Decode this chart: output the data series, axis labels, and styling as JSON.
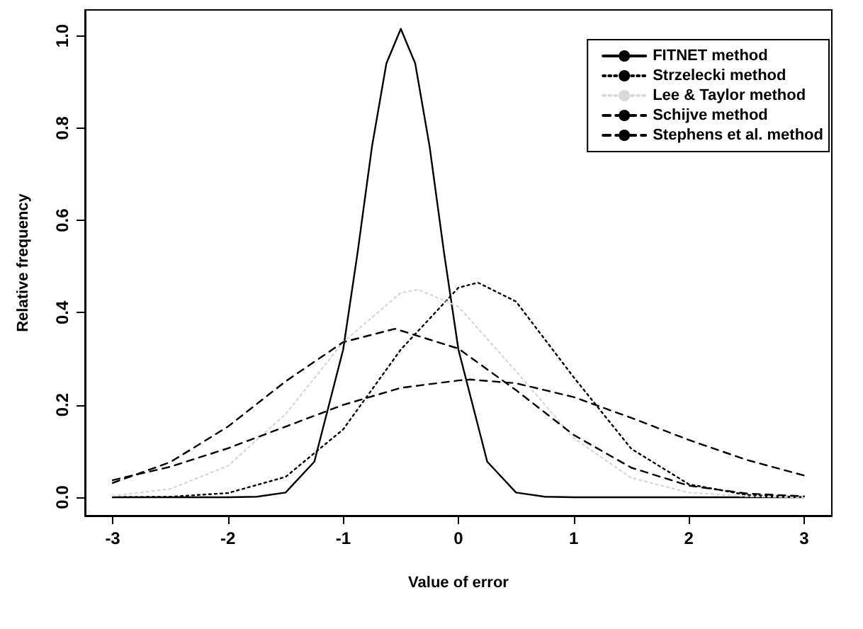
{
  "chart_data": {
    "type": "line",
    "xlabel": "Value of error",
    "ylabel": "Relative frequency",
    "xlim": [
      -3.24,
      3.24
    ],
    "xticks": [
      -3,
      -2,
      -1,
      0,
      1,
      2,
      3
    ],
    "ylim": [
      -0.04,
      1.056
    ],
    "yticks": [
      {
        "value": 0,
        "label": "0.0"
      },
      {
        "value": 0.2,
        "label": "0.2"
      },
      {
        "value": 0.4,
        "label": "0.4"
      },
      {
        "value": 0.6,
        "label": "0.6"
      },
      {
        "value": 0.8,
        "label": "0.8"
      },
      {
        "value": 1,
        "label": "1.0"
      }
    ],
    "grid": false,
    "legend": "top right",
    "series": [
      {
        "name": "FITNET method",
        "color": "#000000",
        "line_style": "solid",
        "x": [
          -3,
          -2.5,
          -2,
          -1.75,
          -1.5,
          -1.25,
          -1,
          -0.875,
          -0.75,
          -0.625,
          -0.5,
          -0.375,
          -0.25,
          -0.125,
          0,
          0.25,
          0.5,
          0.75,
          1,
          1.5,
          2,
          2.5,
          3
        ],
        "values": [
          0,
          0,
          0,
          0.001,
          0.01,
          0.077,
          0.32,
          0.53,
          0.76,
          0.94,
          1.015,
          0.94,
          0.76,
          0.53,
          0.32,
          0.077,
          0.01,
          0.001,
          0,
          0,
          0,
          0,
          0
        ]
      },
      {
        "name": "Strzelecki method",
        "color": "#000000",
        "line_style": "dotted",
        "x": [
          -3,
          -2.5,
          -2,
          -1.5,
          -1,
          -0.5,
          0,
          0.17,
          0.5,
          1,
          1.5,
          2,
          2.5,
          3
        ],
        "values": [
          0,
          0.001,
          0.009,
          0.044,
          0.147,
          0.32,
          0.454,
          0.465,
          0.424,
          0.26,
          0.105,
          0.028,
          0.005,
          0
        ]
      },
      {
        "name": "Lee & Taylor method",
        "color": "#d9d9d9",
        "line_style": "dotted",
        "x": [
          -3,
          -2.5,
          -2,
          -1.5,
          -1,
          -0.5,
          -0.35,
          0,
          0.5,
          1,
          1.5,
          2,
          2.5,
          3
        ],
        "values": [
          0.003,
          0.018,
          0.068,
          0.18,
          0.336,
          0.443,
          0.45,
          0.413,
          0.273,
          0.128,
          0.042,
          0.01,
          0.002,
          0
        ]
      },
      {
        "name": "Schijve method",
        "color": "#000000",
        "line_style": "dashed",
        "x": [
          -3,
          -2.5,
          -2,
          -1.5,
          -1,
          -0.55,
          0,
          0.5,
          1,
          1.5,
          2,
          2.5,
          3
        ],
        "values": [
          0.031,
          0.076,
          0.153,
          0.251,
          0.336,
          0.365,
          0.322,
          0.232,
          0.135,
          0.064,
          0.025,
          0.008,
          0.002
        ]
      },
      {
        "name": "Stephens et al. method",
        "color": "#000000",
        "line_style": "dashed",
        "x": [
          -3,
          -2.5,
          -2,
          -1.5,
          -1,
          -0.5,
          0,
          0.1,
          0.5,
          1,
          1.5,
          2,
          2.5,
          3
        ],
        "values": [
          0.037,
          0.066,
          0.106,
          0.153,
          0.2,
          0.237,
          0.253,
          0.255,
          0.247,
          0.217,
          0.172,
          0.124,
          0.081,
          0.047
        ]
      }
    ]
  }
}
